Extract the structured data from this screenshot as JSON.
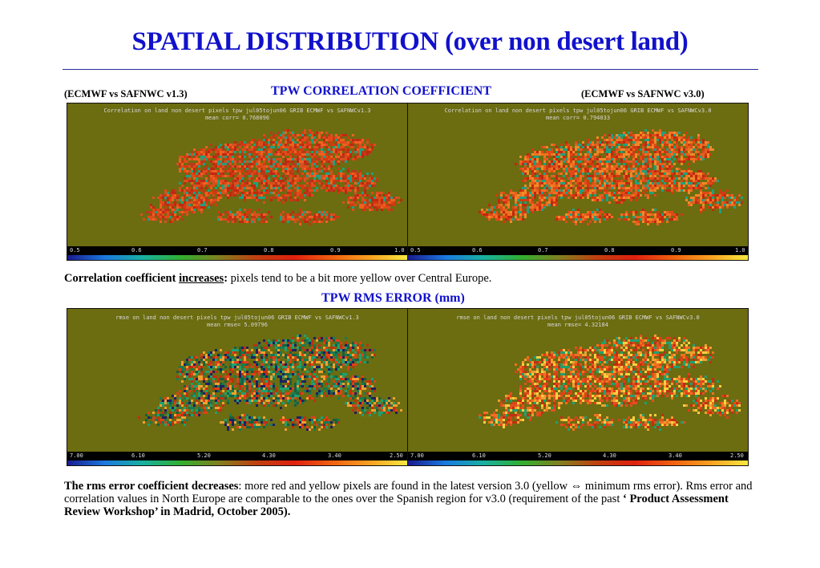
{
  "title": "SPATIAL DISTRIBUTION (over non desert land)",
  "correlation": {
    "section_title": "TPW CORRELATION COEFFICIENT",
    "left_caption": "(ECMWF vs SAFNWC v1.3)",
    "right_caption": "(ECMWF vs SAFNWC v3.0)",
    "left_panel": {
      "line1": "Correlation on land non desert pixels tpw jul05tojun06 GRIB ECMWF vs SAFNWCv1.3",
      "line2": "mean corr=",
      "value": "0.768096"
    },
    "right_panel": {
      "line1": "Correlation on land non desert pixels tpw jul05tojun06 GRIB ECMWF vs SAFNWCv3.0",
      "line2": "mean corr=",
      "value": "0.794033"
    },
    "ticks": [
      "0.5",
      "0.6",
      "0.7",
      "0.8",
      "0.9",
      "1.0"
    ],
    "note_bold": "Correlation coefficient ",
    "note_underline": "increases",
    "note_colon": ":",
    "note_rest": " pixels tend to be a bit more yellow over Central Europe."
  },
  "rms": {
    "section_title": "TPW RMS ERROR (mm)",
    "left_panel": {
      "line1": "rmse on land non desert pixels tpw jul05tojun06 GRIB ECMWF vs SAFNWCv1.3",
      "line2": "mean rmse=",
      "value": "5.09796"
    },
    "right_panel": {
      "line1": "rmse on land non desert pixels tpw jul05tojun06 GRIB ECMWF vs SAFNWCv3.0",
      "line2": "mean rmse=",
      "value": "4.32184"
    },
    "ticks": [
      "7.00",
      "6.10",
      "5.20",
      "4.30",
      "3.40",
      "2.50"
    ],
    "note_bold": "The rms error coefficient decreases",
    "note_rest1": ": more red and yellow pixels are found in the latest version 3.0 (yellow ",
    "note_arrow": "⇔",
    "note_rest2": " minimum rms error). Rms error and correlation values in North Europe are comparable to the ones over the Spanish region for v3.0 (requirement of the past ",
    "note_bold2": "‘ Product Assessment Review Workshop’ in Madrid, October 2005)."
  },
  "colors": {
    "title_blue": "#1111cc",
    "panel_bg": "#6c6c11"
  }
}
